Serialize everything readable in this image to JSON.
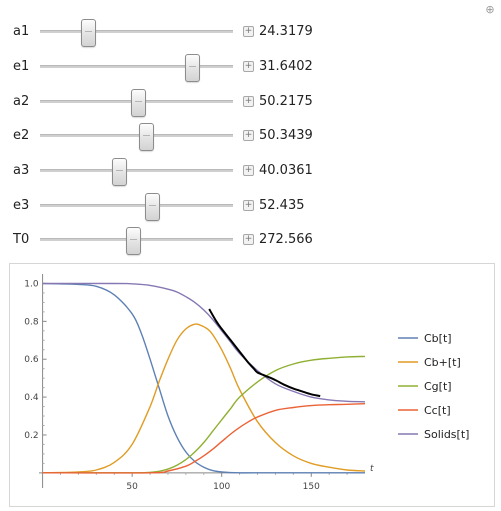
{
  "controls": [
    {
      "label": "a1",
      "value": "24.3179",
      "fraction": 0.25
    },
    {
      "label": "e1",
      "value": "31.6402",
      "fraction": 0.79
    },
    {
      "label": "a2",
      "value": "50.2175",
      "fraction": 0.51
    },
    {
      "label": "e2",
      "value": "50.3439",
      "fraction": 0.55
    },
    {
      "label": "a3",
      "value": "40.0361",
      "fraction": 0.41
    },
    {
      "label": "e3",
      "value": "52.435",
      "fraction": 0.58
    },
    {
      "label": "T0",
      "value": "272.566",
      "fraction": 0.48
    }
  ],
  "chart_data": {
    "type": "line",
    "xlabel": "t",
    "ylabel": "",
    "xlim": [
      -2,
      180
    ],
    "ylim": [
      -0.08,
      1.05
    ],
    "x_ticks": [
      50,
      100,
      150
    ],
    "y_ticks": [
      0.2,
      0.4,
      0.6,
      0.8,
      1.0
    ],
    "y_tick_labels": [
      "0.2",
      "0.4",
      "0.6",
      "0.8",
      "1.0"
    ],
    "legend_position": "right",
    "grid": false,
    "series": [
      {
        "name": "Cb[t]",
        "color": "#5e81b5",
        "x": [
          0,
          20,
          30,
          40,
          50,
          55,
          60,
          65,
          70,
          75,
          80,
          85,
          90,
          95,
          100,
          110,
          120,
          180
        ],
        "y": [
          1.0,
          0.995,
          0.985,
          0.94,
          0.84,
          0.74,
          0.6,
          0.45,
          0.3,
          0.19,
          0.11,
          0.06,
          0.03,
          0.012,
          0.005,
          0.0,
          0.0,
          0.0
        ]
      },
      {
        "name": "Cb+[t]",
        "color": "#e19c24",
        "x": [
          0,
          20,
          30,
          40,
          50,
          60,
          65,
          70,
          75,
          80,
          85,
          88,
          92,
          95,
          100,
          105,
          110,
          120,
          130,
          140,
          150,
          160,
          170,
          180
        ],
        "y": [
          0.0,
          0.005,
          0.015,
          0.055,
          0.15,
          0.35,
          0.48,
          0.6,
          0.7,
          0.76,
          0.785,
          0.78,
          0.76,
          0.73,
          0.65,
          0.55,
          0.44,
          0.27,
          0.16,
          0.09,
          0.05,
          0.03,
          0.015,
          0.01
        ]
      },
      {
        "name": "Cg[t]",
        "color": "#8fb032",
        "x": [
          0,
          50,
          60,
          65,
          70,
          75,
          80,
          85,
          90,
          95,
          100,
          105,
          110,
          120,
          130,
          140,
          150,
          160,
          170,
          180
        ],
        "y": [
          0.0,
          0.0,
          0.003,
          0.008,
          0.02,
          0.04,
          0.07,
          0.11,
          0.16,
          0.22,
          0.28,
          0.34,
          0.4,
          0.48,
          0.54,
          0.575,
          0.595,
          0.605,
          0.612,
          0.615
        ]
      },
      {
        "name": "Cc[t]",
        "color": "#eb6235",
        "x": [
          0,
          60,
          70,
          80,
          85,
          90,
          95,
          100,
          105,
          110,
          115,
          120,
          130,
          140,
          150,
          160,
          170,
          180
        ],
        "y": [
          0.0,
          0.0,
          0.01,
          0.035,
          0.06,
          0.09,
          0.125,
          0.165,
          0.205,
          0.24,
          0.27,
          0.295,
          0.33,
          0.345,
          0.355,
          0.36,
          0.362,
          0.365
        ]
      },
      {
        "name": "Solids[t]",
        "color": "#8778b3",
        "x": [
          0,
          40,
          50,
          60,
          70,
          75,
          80,
          85,
          90,
          95,
          100,
          105,
          110,
          120,
          130,
          140,
          150,
          160,
          170,
          180
        ],
        "y": [
          1.0,
          1.0,
          0.998,
          0.99,
          0.97,
          0.955,
          0.93,
          0.9,
          0.86,
          0.81,
          0.75,
          0.69,
          0.63,
          0.54,
          0.47,
          0.43,
          0.4,
          0.385,
          0.378,
          0.375
        ]
      }
    ],
    "overlay": {
      "name": "",
      "color": "#000000",
      "x": [
        93,
        97,
        100,
        105,
        110,
        115,
        118,
        120,
        125,
        130,
        135,
        140,
        145,
        150,
        155
      ],
      "y": [
        0.865,
        0.8,
        0.76,
        0.7,
        0.64,
        0.58,
        0.55,
        0.53,
        0.51,
        0.49,
        0.465,
        0.445,
        0.43,
        0.415,
        0.405
      ]
    }
  }
}
